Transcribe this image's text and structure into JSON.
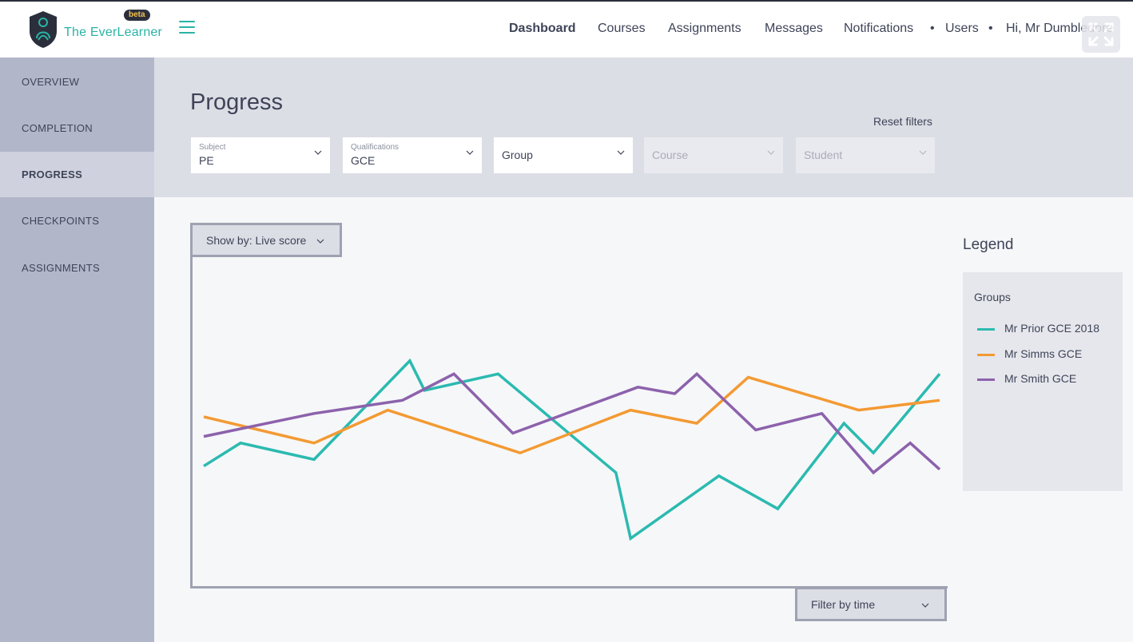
{
  "app": {
    "brand": "The EverLearner",
    "badge": "beta"
  },
  "topnav": {
    "items": [
      {
        "label": "Dashboard",
        "active": true
      },
      {
        "label": "Courses"
      },
      {
        "label": "Assignments"
      },
      {
        "label": "Messages"
      },
      {
        "label": "Notifications"
      },
      {
        "label": "Users"
      }
    ],
    "greeting": "Hi, Mr Dumbledore",
    "separator": "•"
  },
  "sidebar": {
    "items": [
      {
        "label": "OVERVIEW"
      },
      {
        "label": "COMPLETION"
      },
      {
        "label": "PROGRESS",
        "active": true
      },
      {
        "label": "CHECKPOINTS"
      },
      {
        "label": "ASSIGNMENTS"
      }
    ]
  },
  "page": {
    "title": "Progress",
    "reset_filters": "Reset filters"
  },
  "filters": [
    {
      "label": "Subject",
      "value": "PE",
      "enabled": true
    },
    {
      "label": "Qualifications",
      "value": "GCE",
      "enabled": true
    },
    {
      "label": "",
      "value": "Group",
      "enabled": true
    },
    {
      "label": "",
      "value": "Course",
      "enabled": false
    },
    {
      "label": "",
      "value": "Student",
      "enabled": false
    }
  ],
  "controls": {
    "show_by": "Show by: Live score",
    "filter_by_time": "Filter by time"
  },
  "legend": {
    "title": "Legend",
    "subtitle": "Groups"
  },
  "colors": {
    "teal": "#2bbab0",
    "orange": "#f39a33",
    "purple": "#8c62ac"
  },
  "chart_data": {
    "type": "line",
    "title": "",
    "xlabel": "",
    "ylabel": "",
    "ylim": [
      0,
      100
    ],
    "grid": false,
    "legend_position": "right",
    "series": [
      {
        "name": "Mr Prior GCE 2018",
        "color": "#2bbab0",
        "points": [
          [
            0,
            36
          ],
          [
            5,
            43
          ],
          [
            15,
            38
          ],
          [
            28,
            68
          ],
          [
            30,
            59
          ],
          [
            40,
            64
          ],
          [
            56,
            34
          ],
          [
            58,
            14
          ],
          [
            70,
            33
          ],
          [
            78,
            23
          ],
          [
            87,
            49
          ],
          [
            91,
            40
          ],
          [
            100,
            64
          ]
        ]
      },
      {
        "name": "Mr Simms GCE",
        "color": "#f39a33",
        "points": [
          [
            0,
            51
          ],
          [
            15,
            43
          ],
          [
            25,
            53
          ],
          [
            43,
            40
          ],
          [
            58,
            53
          ],
          [
            67,
            49
          ],
          [
            74,
            63
          ],
          [
            89,
            53
          ],
          [
            100,
            56
          ]
        ]
      },
      {
        "name": "Mr Smith GCE",
        "color": "#8c62ac",
        "points": [
          [
            0,
            45
          ],
          [
            15,
            52
          ],
          [
            27,
            56
          ],
          [
            34,
            64
          ],
          [
            42,
            46
          ],
          [
            59,
            60
          ],
          [
            64,
            58
          ],
          [
            67,
            64
          ],
          [
            75,
            47
          ],
          [
            84,
            52
          ],
          [
            91,
            34
          ],
          [
            96,
            43
          ],
          [
            100,
            35
          ]
        ]
      }
    ]
  }
}
